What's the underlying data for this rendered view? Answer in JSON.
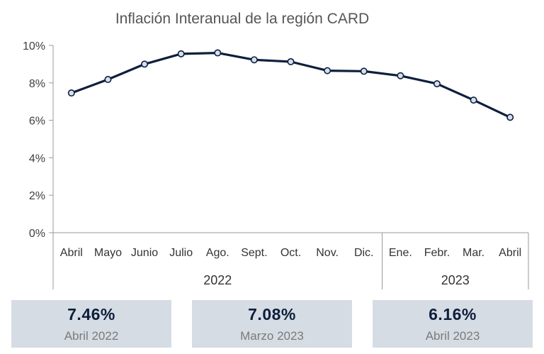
{
  "chart_data": {
    "type": "line",
    "title": "Inflación Interanual de la región CARD",
    "categories": [
      "Abril",
      "Mayo",
      "Junio",
      "Julio",
      "Ago.",
      "Sept.",
      "Oct.",
      "Nov.",
      "Dic.",
      "Ene.",
      "Febr.",
      "Mar.",
      "Abril"
    ],
    "year_groups": [
      {
        "label": "2022",
        "count": 9
      },
      {
        "label": "2023",
        "count": 4
      }
    ],
    "series": [
      {
        "values": [
          7.46,
          8.18,
          9.0,
          9.55,
          9.6,
          9.23,
          9.13,
          8.65,
          8.62,
          8.38,
          7.95,
          7.08,
          6.16
        ]
      }
    ],
    "y_ticks": [
      "0%",
      "2%",
      "4%",
      "6%",
      "8%",
      "10%"
    ],
    "ylim": [
      0,
      10
    ],
    "grid": false,
    "colors": {
      "line": "#0d1f3c",
      "marker_fill": "#d7dfee",
      "card_bg": "#d6dce4"
    }
  },
  "highlights": [
    {
      "value": "7.46%",
      "label": "Abril 2022"
    },
    {
      "value": "7.08%",
      "label": "Marzo 2023"
    },
    {
      "value": "6.16%",
      "label": "Abril 2023"
    }
  ]
}
